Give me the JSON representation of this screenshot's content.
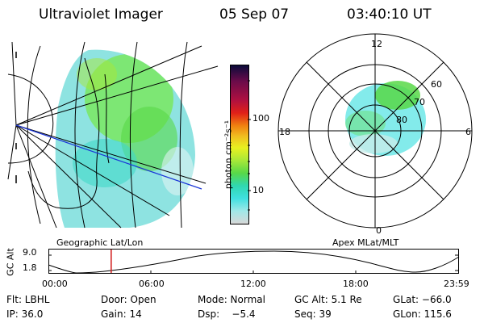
{
  "header": {
    "instrument": "Ultraviolet Imager",
    "date": "05 Sep 07",
    "time": "03:40:10 UT"
  },
  "colors": {
    "background": "#ffffff",
    "foreground": "#000000",
    "blue_line": "#1a35d8",
    "red_marker": "#d01818"
  },
  "colorbar": {
    "unit_label": "photon cm⁻²s⁻¹",
    "ticks": [
      "100",
      "10"
    ],
    "stops": [
      "#0b0b3a",
      "#6a0b4a",
      "#b01040",
      "#e02018",
      "#f08010",
      "#f0c020",
      "#e8f020",
      "#a8e838",
      "#58d848",
      "#30d8b0",
      "#40e0e0",
      "#a0e8e8",
      "#d8d8d8"
    ]
  },
  "geo_panel": {
    "caption": "Geographic Lat/Lon"
  },
  "polar_panel": {
    "caption": "Apex MLat/MLT",
    "mlt_labels": {
      "top": "12",
      "left": "18",
      "right": "6",
      "bottom": "0"
    },
    "lat_labels": [
      "60",
      "70",
      "80"
    ]
  },
  "altitude_plot": {
    "ylabel": "GC Alt",
    "y_ticks": [
      "9.0",
      "1.8"
    ],
    "x_ticks": [
      "00:00",
      "06:00",
      "12:00",
      "18:00",
      "23:59"
    ],
    "current_time_hours": 3.67
  },
  "info": {
    "flt": "Flt: LBHL",
    "door": "Door: Open",
    "mode": "Mode: Normal",
    "gc_alt": "GC Alt: 5.1 Re",
    "glat": "GLat: −66.0",
    "ip": "IP: 36.0",
    "gain": "Gain: 14",
    "dsp": "Dsp:    −5.4",
    "seq": "Seq: 39",
    "glon": "GLon: 115.6"
  }
}
